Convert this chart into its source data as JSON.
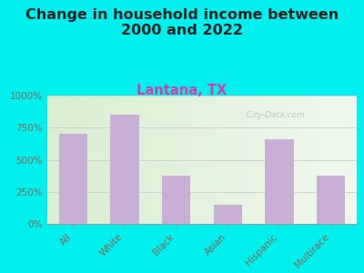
{
  "title": "Change in household income between\n2000 and 2022",
  "subtitle": "Lantana, TX",
  "categories": [
    "All",
    "White",
    "Black",
    "Asian",
    "Hispanic",
    "Multirace"
  ],
  "values": [
    700,
    850,
    375,
    150,
    660,
    375
  ],
  "bar_color": "#c9aed6",
  "background_color": "#00f0f0",
  "plot_bg_left": "#d8efd0",
  "plot_bg_right": "#f0f8ee",
  "title_fontsize": 11.5,
  "title_color": "#222222",
  "subtitle_fontsize": 10.5,
  "subtitle_color": "#cc44aa",
  "tick_label_color": "#886655",
  "ylabel_color": "#886655",
  "ylim": [
    0,
    1000
  ],
  "yticks": [
    0,
    250,
    500,
    750,
    1000
  ],
  "ytick_labels": [
    "0%",
    "250%",
    "500%",
    "750%",
    "1000%"
  ],
  "watermark": "  City-Data.com",
  "grid_color": "#cccccc",
  "watermark_color": "#bbbbbb"
}
